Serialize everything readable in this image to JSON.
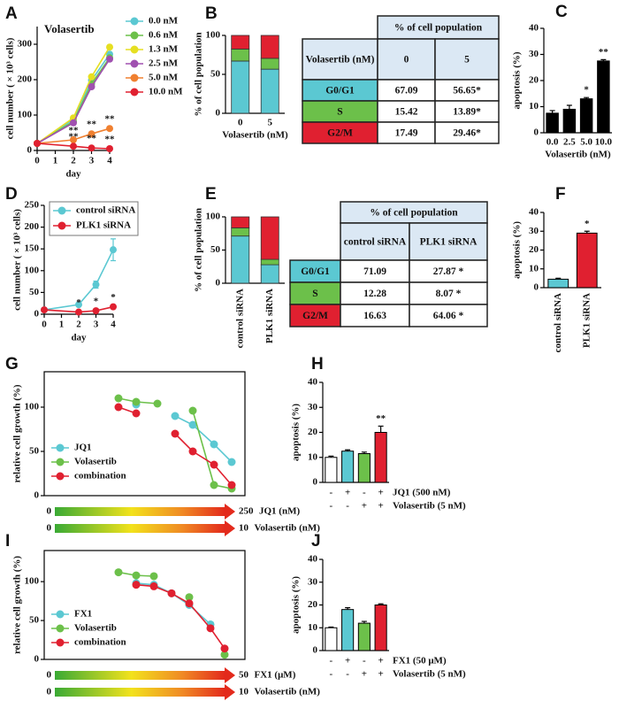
{
  "chart_data": [
    {
      "panel": "A",
      "type": "line",
      "title": "Volasertib",
      "xlabel": "day",
      "ylabel": "cell number ( × 10³ cells)",
      "x": [
        0,
        2,
        3,
        4
      ],
      "xlim": [
        0,
        4
      ],
      "xticks": [
        0,
        1,
        2,
        3,
        4
      ],
      "ylim": [
        0,
        350
      ],
      "yticks": [
        0,
        100,
        200,
        300
      ],
      "legend": "right",
      "series": [
        {
          "name": "0.0 nM",
          "color": "#5bc8d2",
          "values": [
            20,
            88,
            198,
            272
          ]
        },
        {
          "name": "0.6 nM",
          "color": "#6cc04a",
          "values": [
            20,
            82,
            188,
            262
          ]
        },
        {
          "name": "1.3 nM",
          "color": "#e6df22",
          "values": [
            20,
            92,
            208,
            292
          ]
        },
        {
          "name": "2.5 nM",
          "color": "#a050b0",
          "values": [
            20,
            78,
            180,
            258
          ]
        },
        {
          "name": "5.0 nM",
          "color": "#f08030",
          "values": [
            20,
            30,
            47,
            62
          ],
          "annotations": [
            null,
            "**",
            "**",
            "**"
          ]
        },
        {
          "name": "10.0 nM",
          "color": "#e02030",
          "values": [
            20,
            12,
            7,
            5
          ],
          "annotations": [
            null,
            "**",
            "**",
            "**"
          ]
        }
      ]
    },
    {
      "panel": "B",
      "type": "stacked_bar",
      "xlabel": "Volasertib (nM)",
      "ylabel": "% of cell population",
      "categories": [
        "0",
        "5"
      ],
      "ylim": [
        0,
        100
      ],
      "yticks": [
        0,
        50,
        100
      ],
      "series": [
        {
          "color": "#5bc8d2",
          "values": [
            67.09,
            56.65
          ]
        },
        {
          "color": "#6cc04a",
          "values": [
            15.42,
            13.89
          ]
        },
        {
          "color": "#e02030",
          "values": [
            17.49,
            29.46
          ]
        }
      ],
      "table": {
        "header": "% of cell population",
        "corner": "Volasertib (nM)",
        "columns": [
          "0",
          "5"
        ],
        "rows": [
          {
            "label": "G0/G1",
            "cells": [
              "67.09",
              "56.65*"
            ]
          },
          {
            "label": "S",
            "cells": [
              "15.42",
              "13.89*"
            ]
          },
          {
            "label": "G2/M",
            "cells": [
              "17.49",
              "29.46*"
            ]
          }
        ]
      }
    },
    {
      "panel": "C",
      "type": "bar",
      "xlabel": "Volasertib (nM)",
      "ylabel": "apoptosis (%)",
      "categories": [
        "0.0",
        "2.5",
        "5.0",
        "10.0"
      ],
      "values": [
        7.5,
        9,
        13,
        27.5
      ],
      "errors": [
        1,
        1.5,
        0.5,
        0.5
      ],
      "annotations": [
        null,
        null,
        "*",
        "**"
      ],
      "color": "#000000",
      "ylim": [
        0,
        40
      ],
      "yticks": [
        0,
        10,
        20,
        30,
        40
      ]
    },
    {
      "panel": "D",
      "type": "line",
      "xlabel": "day",
      "ylabel": "cell number ( × 10³ cells)",
      "x": [
        0,
        2,
        3,
        4
      ],
      "xlim": [
        0,
        4
      ],
      "xticks": [
        0,
        1,
        2,
        3,
        4
      ],
      "ylim": [
        0,
        250
      ],
      "yticks": [
        0,
        50,
        100,
        150,
        200,
        250
      ],
      "legend": "upper left",
      "series": [
        {
          "name": "control siRNA",
          "color": "#5bc8d2",
          "values": [
            10,
            22,
            68,
            148
          ],
          "errors": [
            1,
            2,
            8,
            25
          ]
        },
        {
          "name": "PLK1 siRNA",
          "color": "#e02030",
          "values": [
            10,
            5,
            8,
            17
          ],
          "annotations": [
            null,
            "*",
            "*",
            "*"
          ]
        }
      ]
    },
    {
      "panel": "E",
      "type": "stacked_bar",
      "ylabel": "% of cell population",
      "categories": [
        "control siRNA",
        "PLK1 siRNA"
      ],
      "ylim": [
        0,
        100
      ],
      "yticks": [
        0,
        50,
        100
      ],
      "series": [
        {
          "color": "#5bc8d2",
          "values": [
            71.09,
            27.87
          ]
        },
        {
          "color": "#6cc04a",
          "values": [
            12.28,
            8.07
          ]
        },
        {
          "color": "#e02030",
          "values": [
            16.63,
            64.06
          ]
        }
      ],
      "table": {
        "header": "% of cell population",
        "columns": [
          "control siRNA",
          "PLK1 siRNA"
        ],
        "rows": [
          {
            "label": "G0/G1",
            "cells": [
              "71.09",
              "27.87 *"
            ]
          },
          {
            "label": "S",
            "cells": [
              "12.28",
              "8.07 *"
            ]
          },
          {
            "label": "G2/M",
            "cells": [
              "16.63",
              "64.06 *"
            ]
          }
        ]
      }
    },
    {
      "panel": "F",
      "type": "bar",
      "ylabel": "apoptosis (%)",
      "categories": [
        "control siRNA",
        "PLK1 siRNA"
      ],
      "values": [
        4.5,
        29
      ],
      "errors": [
        0.5,
        1
      ],
      "annotations": [
        null,
        "*"
      ],
      "colors": [
        "#5bc8d2",
        "#e02030"
      ],
      "ylim": [
        0,
        40
      ],
      "yticks": [
        0,
        10,
        20,
        30,
        40
      ]
    },
    {
      "panel": "G",
      "type": "dose_response",
      "ylabel": "relative cell growth (%)",
      "x": [
        90,
        115,
        145,
        170,
        195,
        225,
        250
      ],
      "xlim": [
        0,
        250
      ],
      "xlabel": "JQ1 (nM)",
      "x2lim": [
        0,
        10
      ],
      "x2label": "Volasertib (nM)",
      "ylim": [
        0,
        140
      ],
      "yticks": [
        0,
        50,
        100
      ],
      "legend": "lower left",
      "series": [
        {
          "name": "JQ1",
          "color": "#5bc8d2",
          "values": [
            null,
            103,
            null,
            90,
            80,
            58,
            38
          ]
        },
        {
          "name": "Volasertib",
          "color": "#6cc04a",
          "values": [
            110,
            106,
            104,
            null,
            96,
            12,
            8
          ]
        },
        {
          "name": "combination",
          "color": "#e02030",
          "values": [
            100,
            93,
            null,
            70,
            50,
            35,
            12
          ]
        }
      ]
    },
    {
      "panel": "H",
      "type": "bar",
      "ylabel": "apoptosis (%)",
      "values": [
        10,
        12.5,
        11.5,
        20
      ],
      "errors": [
        0.5,
        0.5,
        0.6,
        2.5
      ],
      "annotations": [
        null,
        null,
        null,
        "**"
      ],
      "colors": [
        "#ffffff",
        "#5bc8d2",
        "#6cc04a",
        "#e02030"
      ],
      "ylim": [
        0,
        40
      ],
      "yticks": [
        0,
        10,
        20,
        30,
        40
      ],
      "conditions": [
        {
          "label": "JQ1 (500 nM)",
          "signs": [
            "-",
            "+",
            "-",
            "+"
          ]
        },
        {
          "label": "Volasertib (5 nM)",
          "signs": [
            "-",
            "-",
            "+",
            "+"
          ]
        }
      ]
    },
    {
      "panel": "I",
      "type": "dose_response",
      "ylabel": "relative cell growth (%)",
      "x": [
        18,
        23,
        28,
        33,
        38,
        44,
        48
      ],
      "xlim": [
        0,
        50
      ],
      "xlabel": "FX1 (μM)",
      "x2lim": [
        0,
        10
      ],
      "x2label": "Volasertib (nM)",
      "ylim": [
        0,
        140
      ],
      "yticks": [
        0,
        50,
        100
      ],
      "legend": "lower left",
      "series": [
        {
          "name": "FX1",
          "color": "#5bc8d2",
          "values": [
            null,
            98,
            96,
            85,
            70,
            45,
            null
          ]
        },
        {
          "name": "Volasertib",
          "color": "#6cc04a",
          "values": [
            112,
            108,
            107,
            null,
            80,
            null,
            6
          ]
        },
        {
          "name": "combination",
          "color": "#e02030",
          "values": [
            null,
            96,
            94,
            85,
            72,
            40,
            14
          ]
        }
      ]
    },
    {
      "panel": "J",
      "type": "bar",
      "ylabel": "apoptosis (%)",
      "values": [
        10,
        18,
        12,
        20
      ],
      "errors": [
        0.3,
        0.8,
        0.8,
        0.5
      ],
      "colors": [
        "#ffffff",
        "#5bc8d2",
        "#6cc04a",
        "#e02030"
      ],
      "ylim": [
        0,
        40
      ],
      "yticks": [
        0,
        10,
        20,
        30,
        40
      ],
      "conditions": [
        {
          "label": "FX1 (50 μM)",
          "signs": [
            "-",
            "+",
            "-",
            "+"
          ]
        },
        {
          "label": "Volasertib (5 nM)",
          "signs": [
            "-",
            "-",
            "+",
            "+"
          ]
        }
      ]
    }
  ]
}
